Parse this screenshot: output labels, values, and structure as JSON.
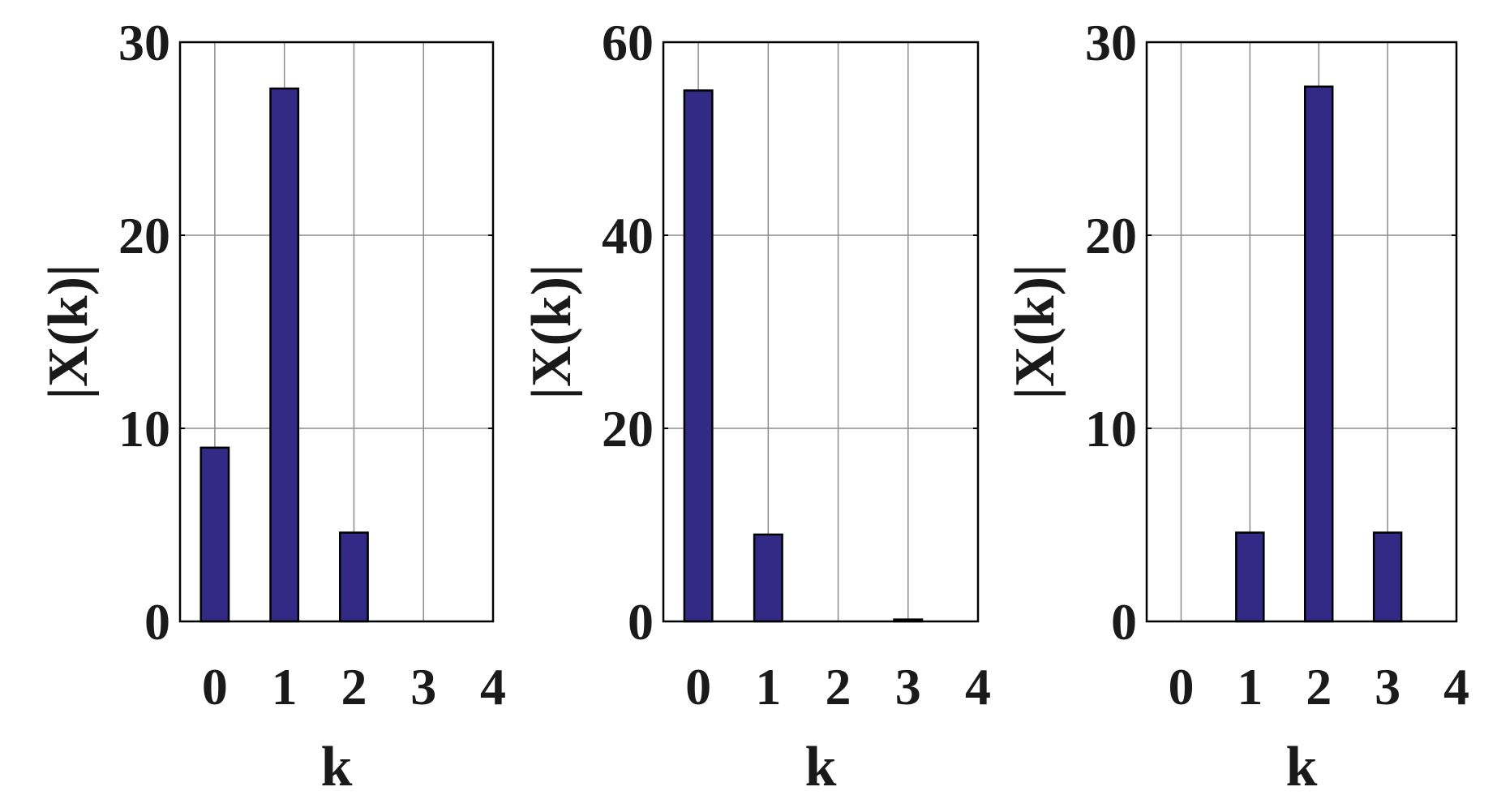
{
  "chart_data": [
    {
      "type": "bar",
      "categories": [
        "0",
        "1",
        "2",
        "3"
      ],
      "values": [
        9.0,
        27.6,
        4.6,
        0.0
      ],
      "xticks": [
        "0",
        "1",
        "2",
        "3",
        "4"
      ],
      "yticks": [
        "0",
        "10",
        "20",
        "30"
      ],
      "xlabel": "k",
      "ylabel": "|X(k)|",
      "ylim": [
        0,
        30
      ],
      "xlim": [
        -0.5,
        4
      ],
      "grid": true,
      "color": "#332a86"
    },
    {
      "type": "bar",
      "categories": [
        "0",
        "1",
        "2",
        "3"
      ],
      "values": [
        55.0,
        9.0,
        0.0,
        0.2
      ],
      "xticks": [
        "0",
        "1",
        "2",
        "3",
        "4"
      ],
      "yticks": [
        "0",
        "20",
        "40",
        "60"
      ],
      "xlabel": "k",
      "ylabel": "|X(k)|",
      "ylim": [
        0,
        60
      ],
      "xlim": [
        -0.5,
        4
      ],
      "grid": true,
      "color": "#332a86"
    },
    {
      "type": "bar",
      "categories": [
        "0",
        "1",
        "2",
        "3"
      ],
      "values": [
        0.0,
        4.6,
        27.7,
        4.6
      ],
      "xticks": [
        "0",
        "1",
        "2",
        "3",
        "4"
      ],
      "yticks": [
        "0",
        "10",
        "20",
        "30"
      ],
      "xlabel": "k",
      "ylabel": "|X(k)|",
      "ylim": [
        0,
        30
      ],
      "xlim": [
        -0.5,
        4
      ],
      "grid": true,
      "color": "#332a86"
    }
  ]
}
